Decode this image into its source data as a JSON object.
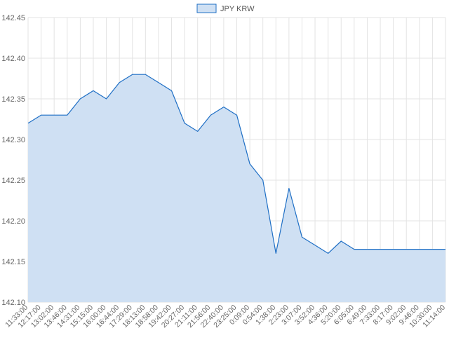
{
  "chart_data": {
    "type": "area",
    "title": "",
    "xlabel": "",
    "ylabel": "",
    "legend": {
      "position": "top",
      "entries": [
        "JPY KRW"
      ]
    },
    "grid": true,
    "ylim": [
      142.1,
      142.45
    ],
    "y_ticks": [
      "142.10",
      "142.15",
      "142.20",
      "142.25",
      "142.30",
      "142.35",
      "142.40",
      "142.45"
    ],
    "x_ticks": [
      "11:33:00",
      "12:17:00",
      "13:02:00",
      "13:46:00",
      "14:31:00",
      "15:15:00",
      "16:00:00",
      "16:44:00",
      "17:29:00",
      "18:13:00",
      "18:58:00",
      "19:42:00",
      "20:27:00",
      "21:11:00",
      "21:56:00",
      "22:40:00",
      "23:25:00",
      "0:09:00",
      "0:54:00",
      "1:38:00",
      "2:23:00",
      "3:07:00",
      "3:52:00",
      "4:36:00",
      "5:20:00",
      "6:05:00",
      "6:49:00",
      "7:33:00",
      "8:17:00",
      "9:02:00",
      "9:46:00",
      "10:30:00",
      "11:14:00"
    ],
    "colors": {
      "line": "#1f6fc5",
      "fill": "#cfe0f3",
      "grid": "#e3e3e3"
    },
    "series": [
      {
        "name": "JPY KRW",
        "x": [
          "11:33:00",
          "12:17:00",
          "13:02:00",
          "13:46:00",
          "14:31:00",
          "15:15:00",
          "16:00:00",
          "16:44:00",
          "17:29:00",
          "18:13:00",
          "18:58:00",
          "19:42:00",
          "20:27:00",
          "21:11:00",
          "21:56:00",
          "22:40:00",
          "23:25:00",
          "0:09:00",
          "0:54:00",
          "1:38:00",
          "2:23:00",
          "3:07:00",
          "3:52:00",
          "4:36:00",
          "5:20:00",
          "6:05:00",
          "6:49:00",
          "7:33:00",
          "8:17:00",
          "9:02:00",
          "9:46:00",
          "10:30:00",
          "11:14:00"
        ],
        "values": [
          142.32,
          142.33,
          142.33,
          142.33,
          142.35,
          142.36,
          142.35,
          142.37,
          142.38,
          142.38,
          142.37,
          142.36,
          142.32,
          142.31,
          142.33,
          142.34,
          142.33,
          142.27,
          142.25,
          142.16,
          142.24,
          142.18,
          142.17,
          142.16,
          142.175,
          142.165,
          142.165,
          142.165,
          142.165,
          142.165,
          142.165,
          142.165,
          142.165
        ]
      }
    ]
  }
}
